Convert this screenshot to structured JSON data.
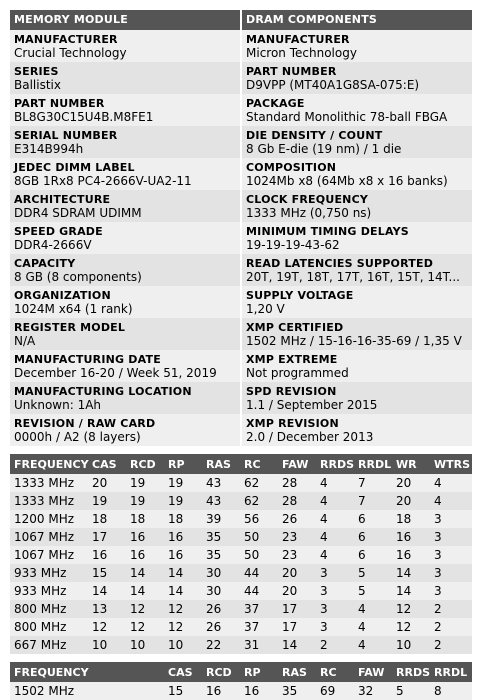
{
  "module": {
    "header": "MEMORY MODULE",
    "fields": [
      {
        "label": "MANUFACTURER",
        "value": "Crucial Technology"
      },
      {
        "label": "SERIES",
        "value": "Ballistix"
      },
      {
        "label": "PART NUMBER",
        "value": "BL8G30C15U4B.M8FE1"
      },
      {
        "label": "SERIAL NUMBER",
        "value": "E314B994h"
      },
      {
        "label": "JEDEC DIMM LABEL",
        "value": "8GB 1Rx8 PC4-2666V-UA2-11"
      },
      {
        "label": "ARCHITECTURE",
        "value": "DDR4 SDRAM UDIMM"
      },
      {
        "label": "SPEED GRADE",
        "value": "DDR4-2666V"
      },
      {
        "label": "CAPACITY",
        "value": "8 GB (8 components)"
      },
      {
        "label": "ORGANIZATION",
        "value": "1024M x64 (1 rank)"
      },
      {
        "label": "REGISTER MODEL",
        "value": "N/A"
      },
      {
        "label": "MANUFACTURING DATE",
        "value": "December 16-20 / Week 51, 2019"
      },
      {
        "label": "MANUFACTURING LOCATION",
        "value": "Unknown: 1Ah"
      },
      {
        "label": "REVISION / RAW CARD",
        "value": "0000h / A2 (8 layers)"
      }
    ]
  },
  "dram": {
    "header": "DRAM COMPONENTS",
    "fields": [
      {
        "label": "MANUFACTURER",
        "value": "Micron Technology"
      },
      {
        "label": "PART NUMBER",
        "value": "D9VPP (MT40A1G8SA-075:E)"
      },
      {
        "label": "PACKAGE",
        "value": "Standard Monolithic 78-ball FBGA"
      },
      {
        "label": "DIE DENSITY / COUNT",
        "value": "8 Gb E-die (19 nm) / 1 die"
      },
      {
        "label": "COMPOSITION",
        "value": "1024Mb x8 (64Mb x8 x 16 banks)"
      },
      {
        "label": "CLOCK FREQUENCY",
        "value": "1333 MHz (0,750 ns)"
      },
      {
        "label": "MINIMUM TIMING DELAYS",
        "value": "19-19-19-43-62"
      },
      {
        "label": "READ LATENCIES SUPPORTED",
        "value": "20T, 19T, 18T, 17T, 16T, 15T, 14T..."
      },
      {
        "label": "SUPPLY VOLTAGE",
        "value": "1,20 V"
      },
      {
        "label": "XMP CERTIFIED",
        "value": "1502 MHz / 15-16-16-35-69 / 1,35 V"
      },
      {
        "label": "XMP EXTREME",
        "value": "Not programmed"
      },
      {
        "label": "SPD REVISION",
        "value": "1.1 / September 2015"
      },
      {
        "label": "XMP REVISION",
        "value": "2.0 / December 2013"
      }
    ]
  },
  "jedec": {
    "columns": [
      "FREQUENCY",
      "CAS",
      "RCD",
      "RP",
      "RAS",
      "RC",
      "FAW",
      "RRDS",
      "RRDL",
      "WR",
      "WTRS"
    ],
    "rows": [
      [
        "1333 MHz",
        "20",
        "19",
        "19",
        "43",
        "62",
        "28",
        "4",
        "7",
        "20",
        "4"
      ],
      [
        "1333 MHz",
        "19",
        "19",
        "19",
        "43",
        "62",
        "28",
        "4",
        "7",
        "20",
        "4"
      ],
      [
        "1200 MHz",
        "18",
        "18",
        "18",
        "39",
        "56",
        "26",
        "4",
        "6",
        "18",
        "3"
      ],
      [
        "1067 MHz",
        "17",
        "16",
        "16",
        "35",
        "50",
        "23",
        "4",
        "6",
        "16",
        "3"
      ],
      [
        "1067 MHz",
        "16",
        "16",
        "16",
        "35",
        "50",
        "23",
        "4",
        "6",
        "16",
        "3"
      ],
      [
        "933 MHz",
        "15",
        "14",
        "14",
        "30",
        "44",
        "20",
        "3",
        "5",
        "14",
        "3"
      ],
      [
        "933 MHz",
        "14",
        "14",
        "14",
        "30",
        "44",
        "20",
        "3",
        "5",
        "14",
        "3"
      ],
      [
        "800 MHz",
        "13",
        "12",
        "12",
        "26",
        "37",
        "17",
        "3",
        "4",
        "12",
        "2"
      ],
      [
        "800 MHz",
        "12",
        "12",
        "12",
        "26",
        "37",
        "17",
        "3",
        "4",
        "12",
        "2"
      ],
      [
        "667 MHz",
        "10",
        "10",
        "10",
        "22",
        "31",
        "14",
        "2",
        "4",
        "10",
        "2"
      ]
    ]
  },
  "xmp": {
    "columns": [
      "FREQUENCY",
      "",
      "CAS",
      "RCD",
      "RP",
      "RAS",
      "RC",
      "FAW",
      "RRDS",
      "RRDL"
    ],
    "rows": [
      [
        "1502 MHz",
        "",
        "15",
        "16",
        "16",
        "35",
        "69",
        "32",
        "5",
        "8"
      ]
    ]
  }
}
